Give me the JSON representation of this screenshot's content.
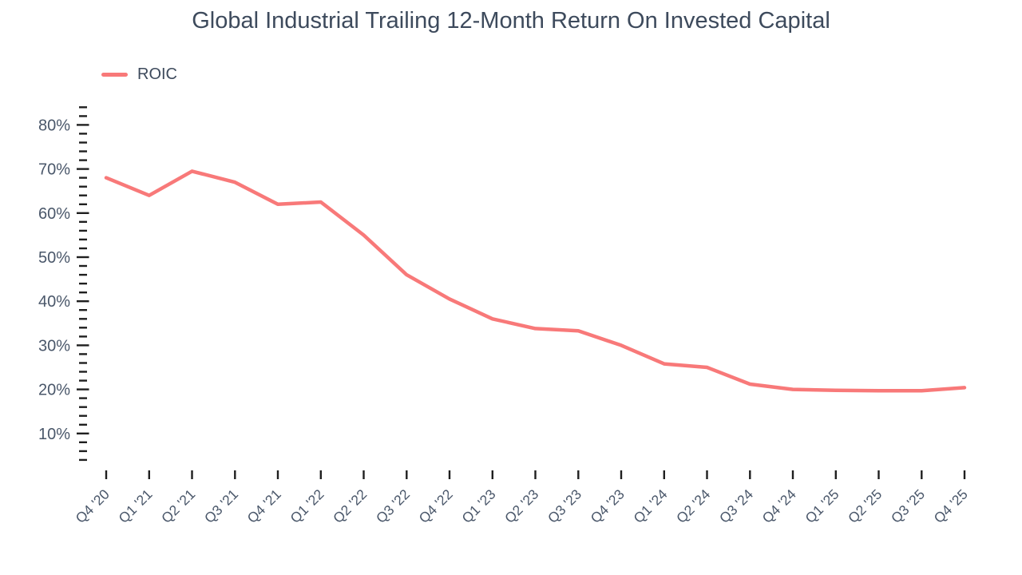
{
  "chart_data": {
    "type": "line",
    "title": "Global Industrial Trailing 12-Month Return On Invested Capital",
    "xlabel": "",
    "ylabel": "",
    "ylim": [
      0,
      85
    ],
    "grid": "off",
    "legend_position": "top-left",
    "categories": [
      "Q4 '20",
      "Q1 '21",
      "Q2 '21",
      "Q3 '21",
      "Q4 '21",
      "Q1 '22",
      "Q2 '22",
      "Q3 '22",
      "Q4 '22",
      "Q1 '23",
      "Q2 '23",
      "Q3 '23",
      "Q4 '23",
      "Q1 '24",
      "Q2 '24",
      "Q3 '24",
      "Q4 '24",
      "Q1 '25",
      "Q2 '25",
      "Q3 '25",
      "Q4 '25"
    ],
    "series": [
      {
        "name": "ROIC",
        "color": "#f87979",
        "values": [
          68,
          64,
          69.5,
          67,
          62,
          62.5,
          55,
          46,
          40.5,
          36,
          33.8,
          33.3,
          30,
          25.8,
          25,
          21.2,
          20,
          19.8,
          19.7,
          19.7,
          20.4
        ]
      }
    ],
    "y_axis": {
      "tick_labels": [
        "10%",
        "20%",
        "30%",
        "40%",
        "50%",
        "60%",
        "70%",
        "80%"
      ],
      "tick_suffix": "%",
      "major_step": 10,
      "minor_step": 2,
      "minor_min": 4,
      "minor_max": 84
    }
  },
  "theme": {
    "background": "#ffffff",
    "title_color": "#3d4a5c",
    "axis_label_color": "#4a576a",
    "tick_color": "#1f1f1f",
    "line_color": "#f87979"
  }
}
